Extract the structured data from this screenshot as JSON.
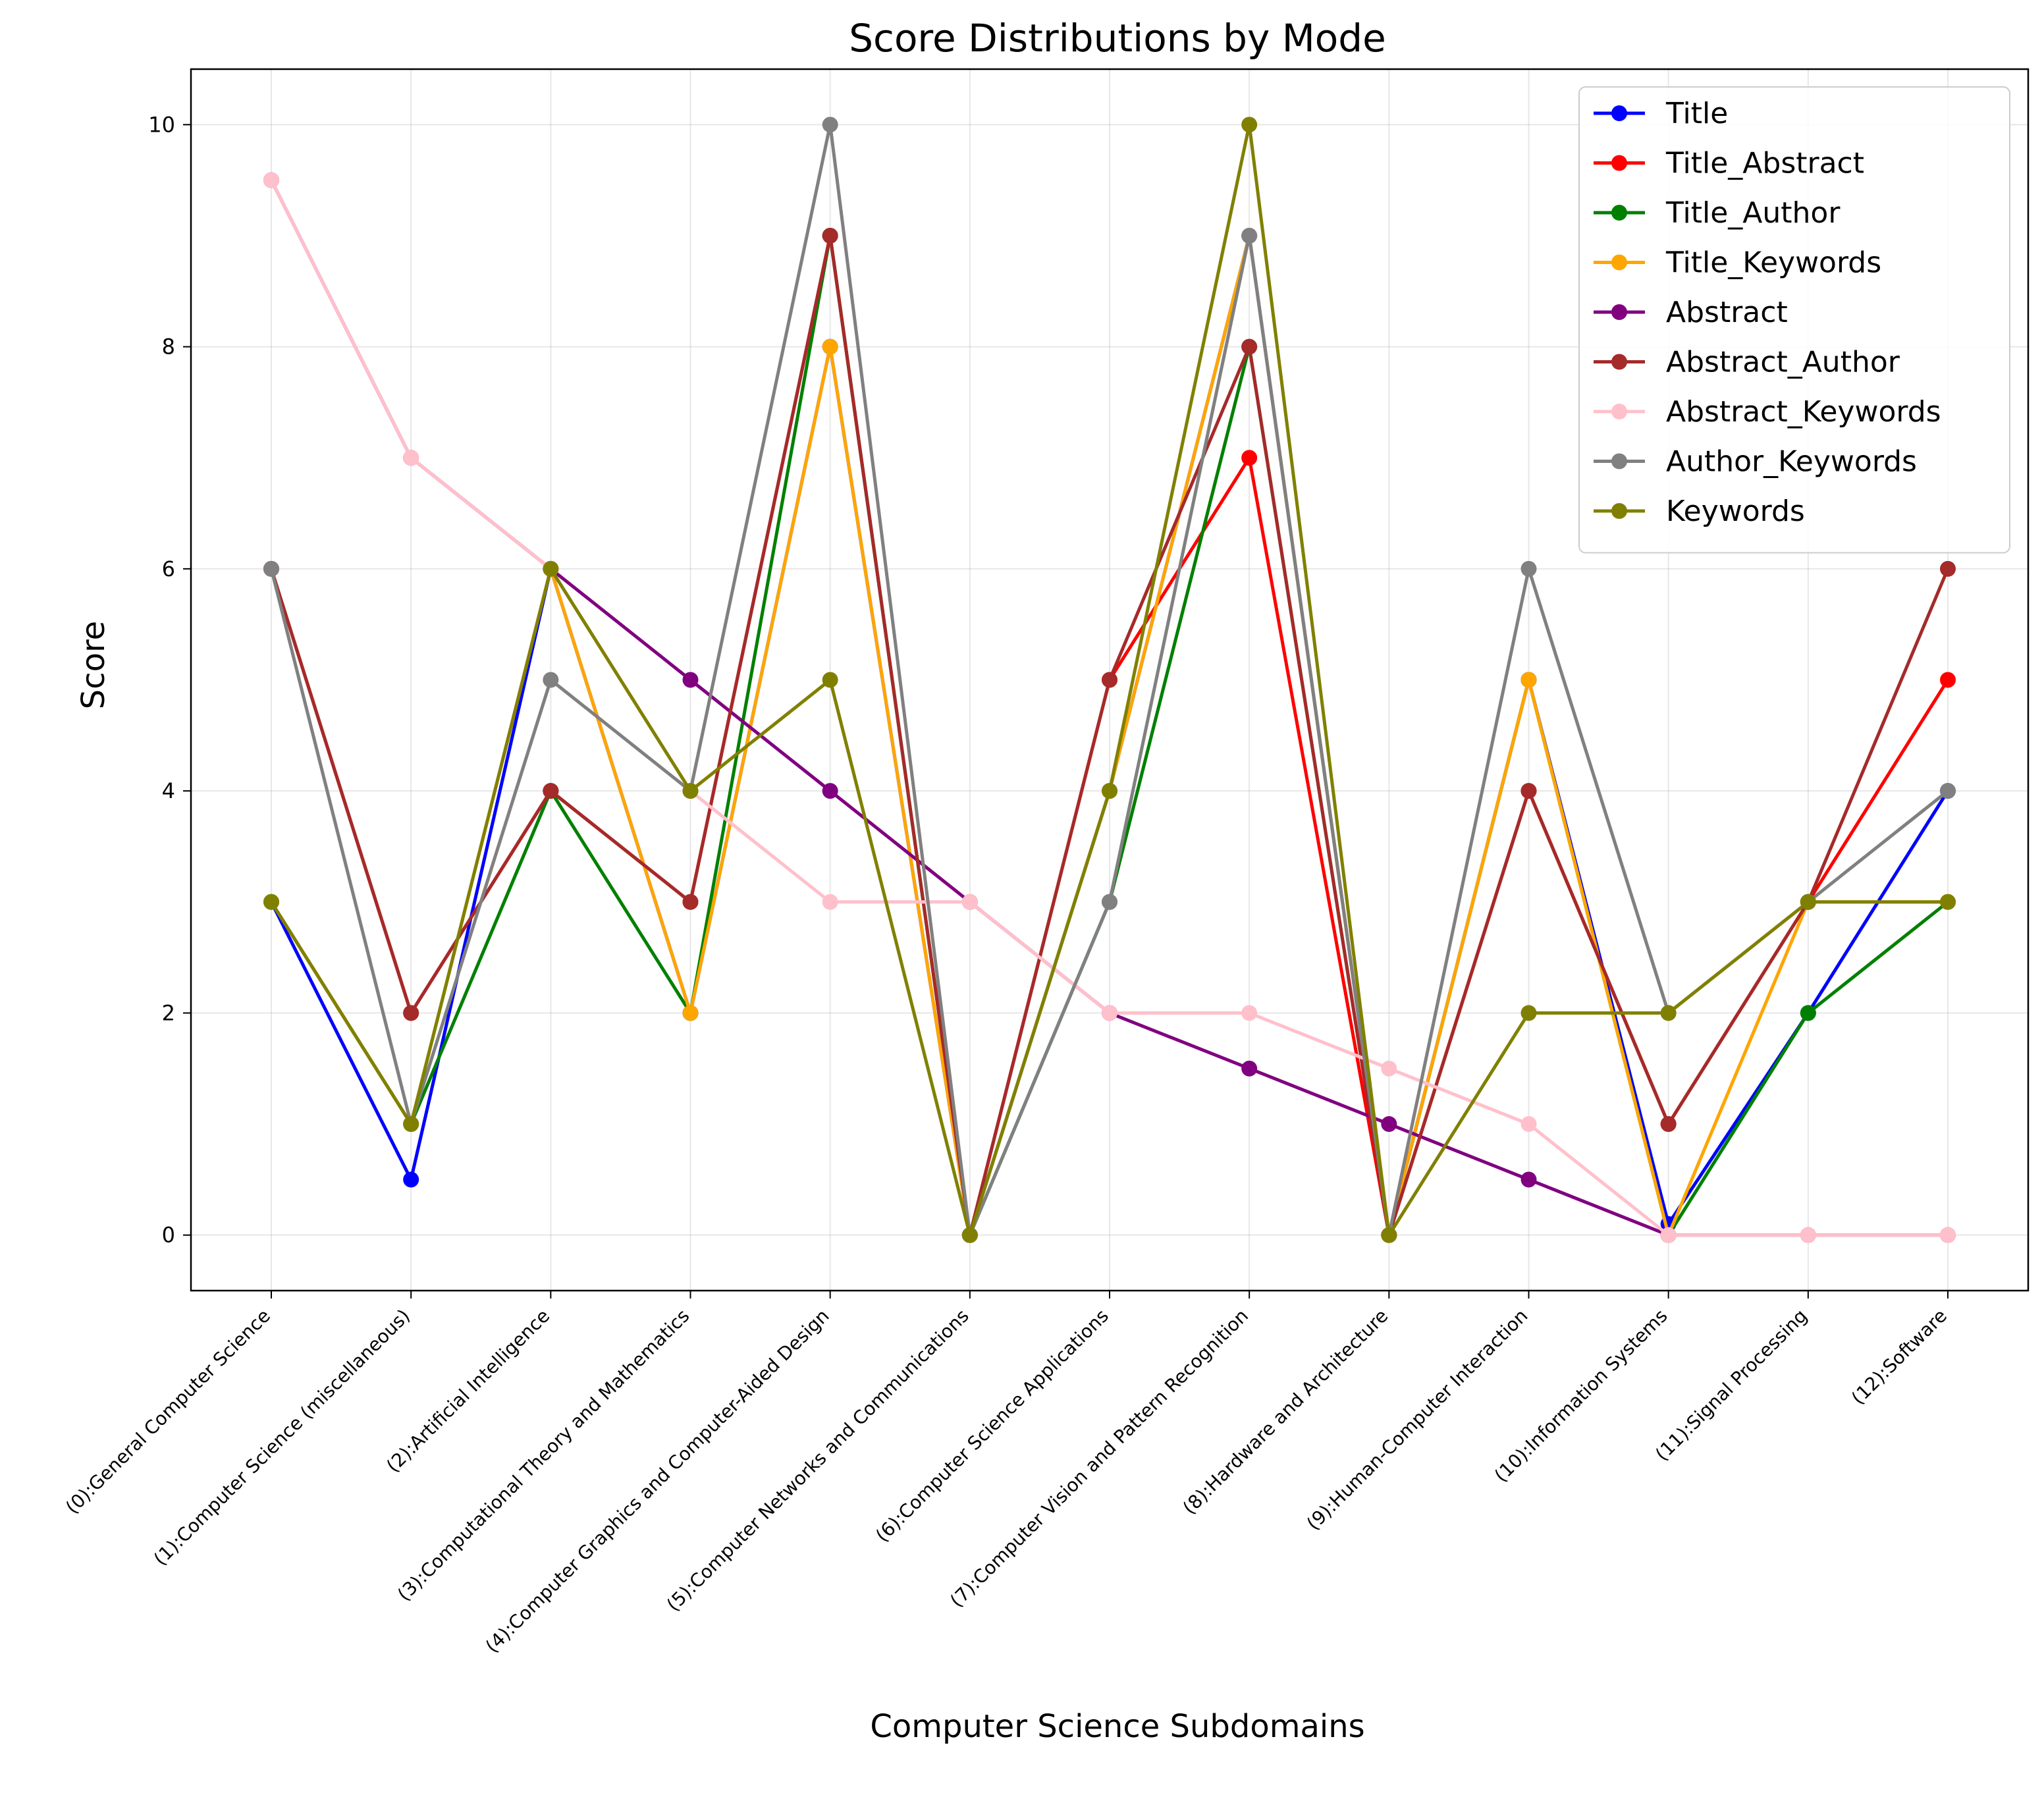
{
  "chart_data": {
    "type": "line",
    "title": "Score Distributions by Mode",
    "xlabel": "Computer Science Subdomains",
    "ylabel": "Score",
    "ylim": [
      -0.5,
      10.5
    ],
    "yticks": [
      0,
      2,
      4,
      6,
      8,
      10
    ],
    "grid": true,
    "legend_position": "top-right",
    "categories": [
      "(0):General Computer Science",
      "(1):Computer Science (miscellaneous)",
      "(2):Artificial Intelligence",
      "(3):Computational Theory and Mathematics",
      "(4):Computer Graphics and Computer-Aided Design",
      "(5):Computer Networks and Communications",
      "(6):Computer Science Applications",
      "(7):Computer Vision and Pattern Recognition",
      "(8):Hardware and Architecture",
      "(9):Human-Computer Interaction",
      "(10):Information Systems",
      "(11):Signal Processing",
      "(12):Software"
    ],
    "series": [
      {
        "name": "Title",
        "color": "#0000ff",
        "values": [
          3,
          0.5,
          6,
          2,
          8,
          0,
          4,
          9,
          0,
          5,
          0.1,
          2,
          4
        ]
      },
      {
        "name": "Title_Abstract",
        "color": "#ff0000",
        "values": [
          6,
          2,
          4,
          3,
          9,
          0,
          5,
          7,
          0,
          4,
          1,
          3,
          5
        ]
      },
      {
        "name": "Title_Author",
        "color": "#008000",
        "values": [
          3,
          1,
          4,
          2,
          9,
          0,
          3,
          8,
          0,
          5,
          0,
          2,
          3
        ]
      },
      {
        "name": "Title_Keywords",
        "color": "#ffa500",
        "values": [
          3,
          1,
          6,
          2,
          8,
          0,
          4,
          9,
          0,
          5,
          0,
          3,
          3
        ]
      },
      {
        "name": "Abstract",
        "color": "#800080",
        "values": [
          9.5,
          7,
          6,
          5,
          4,
          3,
          2,
          1.5,
          1,
          0.5,
          0,
          0,
          0
        ]
      },
      {
        "name": "Abstract_Author",
        "color": "#a52a2a",
        "values": [
          6,
          2,
          4,
          3,
          9,
          0,
          5,
          8,
          0,
          4,
          1,
          3,
          6
        ]
      },
      {
        "name": "Abstract_Keywords",
        "color": "#ffc0cb",
        "values": [
          9.5,
          7,
          6,
          4,
          3,
          3,
          2,
          2,
          1.5,
          1,
          0,
          0,
          0
        ]
      },
      {
        "name": "Author_Keywords",
        "color": "#808080",
        "values": [
          6,
          1,
          5,
          4,
          10,
          0,
          3,
          9,
          0,
          6,
          2,
          3,
          4
        ]
      },
      {
        "name": "Keywords",
        "color": "#808000",
        "values": [
          3,
          1,
          6,
          4,
          5,
          0,
          4,
          10,
          0,
          2,
          2,
          3,
          3
        ]
      }
    ]
  }
}
